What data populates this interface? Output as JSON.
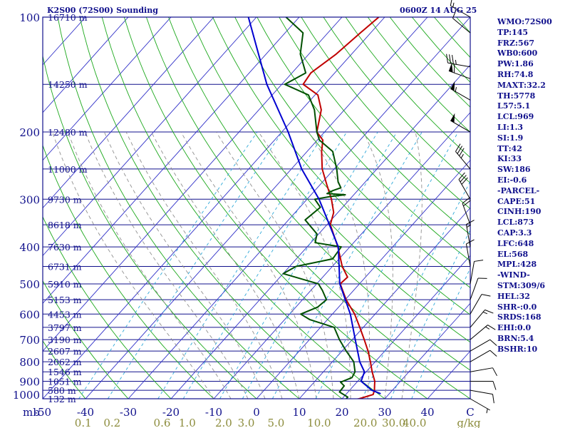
{
  "header": {
    "station": "K2S00 (72S00) Sounding",
    "time": "0600Z 14 AUG 25"
  },
  "axis_labels": {
    "pressure_unit": "mb",
    "mixing_ratio_unit": "g/kg"
  },
  "stats": [
    "WMO:72S00",
    "TP:145",
    "FRZ:567",
    "WB0:600",
    "PW:1.86",
    "RH:74.8",
    "MAXT:32.2",
    "TH:5778",
    "L57:5.1",
    "LCL:969",
    "LI:1.3",
    "SI:1.9",
    "TT:42",
    "KI:33",
    "SW:186",
    "EI:-0.6",
    "-PARCEL-",
    "CAPE:51",
    "CINH:190",
    "LCL:873",
    "CAP:3.3",
    "LFC:648",
    "EL:568",
    "MPL:428",
    "-WIND-",
    "STM:309/6",
    "HEL:32",
    "SHR-:0.0",
    "SRDS:168",
    "EHI:0.0",
    "BRN:5.4",
    "BSHR:10"
  ],
  "colors": {
    "isobar": "#10108c",
    "isotherm": "#3030c8",
    "dry_adiabat": "#1ca81c",
    "moist_adiabat": "#909090",
    "mixing_ratio": "#2ea8d8",
    "temperature": "#c00000",
    "dewpoint": "#005000",
    "parcel": "#0000d0",
    "tick_label": "#10108c",
    "mixing_label": "#8c8c3c"
  },
  "chart_data": {
    "type": "skew-t",
    "title": "K2S00 (72S00) Sounding 0600Z 14 AUG 25",
    "pressure_levels": [
      100,
      200,
      300,
      400,
      500,
      600,
      700,
      800,
      900,
      1000
    ],
    "plim": [
      100,
      1000
    ],
    "tlim": [
      -50,
      50
    ],
    "pressure_scale": "log",
    "temperature_ticks": [
      "-50",
      "-40",
      "-30",
      "-20",
      "-10",
      "0",
      "10",
      "20",
      "30",
      "40",
      "C"
    ],
    "mixing_ratio_ticks": [
      "0.1",
      "0.2",
      "0.6",
      "1.0",
      "2.0",
      "3.0",
      "5.0",
      "10.0",
      "20.0",
      "30.0",
      "40.0"
    ],
    "mixing_ratio_values": [
      0.1,
      0.2,
      0.6,
      1.0,
      2.0,
      3.0,
      5.0,
      10.0,
      20.0,
      30.0,
      40.0
    ],
    "heights": [
      {
        "p": 100,
        "label": "16710 m"
      },
      {
        "p": 150,
        "label": "14250 m"
      },
      {
        "p": 200,
        "label": "12480 m"
      },
      {
        "p": 250,
        "label": "11000 m"
      },
      {
        "p": 300,
        "label": "9730 m"
      },
      {
        "p": 350,
        "label": "8618 m"
      },
      {
        "p": 400,
        "label": "7630 m"
      },
      {
        "p": 450,
        "label": "6731 m"
      },
      {
        "p": 500,
        "label": "5910 m"
      },
      {
        "p": 550,
        "label": "5153 m"
      },
      {
        "p": 600,
        "label": "4453 m"
      },
      {
        "p": 650,
        "label": "3797 m"
      },
      {
        "p": 700,
        "label": "3190 m"
      },
      {
        "p": 750,
        "label": "2607 m"
      },
      {
        "p": 800,
        "label": "2062 m"
      },
      {
        "p": 850,
        "label": "1546 m"
      },
      {
        "p": 900,
        "label": "1051 m"
      },
      {
        "p": 950,
        "label": "580 m"
      },
      {
        "p": 1000,
        "label": "132 m"
      }
    ],
    "series": [
      {
        "name": "temperature",
        "points": [
          [
            1006,
            23.0
          ],
          [
            1000,
            24.0
          ],
          [
            975,
            26.4
          ],
          [
            950,
            25.8
          ],
          [
            925,
            24.9
          ],
          [
            900,
            24.0
          ],
          [
            850,
            21.4
          ],
          [
            800,
            18.9
          ],
          [
            750,
            16.1
          ],
          [
            700,
            12.8
          ],
          [
            650,
            9.2
          ],
          [
            600,
            5.2
          ],
          [
            550,
            0.2
          ],
          [
            500,
            -4.5
          ],
          [
            480,
            -4.2
          ],
          [
            450,
            -7.7
          ],
          [
            400,
            -12.8
          ],
          [
            350,
            -19.2
          ],
          [
            325,
            -21.0
          ],
          [
            300,
            -24.3
          ],
          [
            275,
            -28.4
          ],
          [
            250,
            -32.8
          ],
          [
            225,
            -36.6
          ],
          [
            210,
            -38.7
          ],
          [
            200,
            -41.8
          ],
          [
            175,
            -45.4
          ],
          [
            160,
            -49.3
          ],
          [
            150,
            -55.0
          ],
          [
            140,
            -55.6
          ],
          [
            125,
            -53.6
          ],
          [
            110,
            -52.4
          ],
          [
            100,
            -51.4
          ]
        ]
      },
      {
        "name": "dewpoint",
        "points": [
          [
            1006,
            21.0
          ],
          [
            990,
            21.0
          ],
          [
            960,
            18.0
          ],
          [
            925,
            17.8
          ],
          [
            905,
            16.2
          ],
          [
            880,
            17.9
          ],
          [
            850,
            17.4
          ],
          [
            800,
            15.0
          ],
          [
            750,
            11.0
          ],
          [
            700,
            7.0
          ],
          [
            650,
            3.2
          ],
          [
            620,
            -4.2
          ],
          [
            600,
            -7.4
          ],
          [
            575,
            -4.9
          ],
          [
            550,
            -4.4
          ],
          [
            520,
            -7.3
          ],
          [
            500,
            -9.6
          ],
          [
            470,
            -20.0
          ],
          [
            450,
            -18.5
          ],
          [
            430,
            -11.5
          ],
          [
            400,
            -12.0
          ],
          [
            390,
            -19.0
          ],
          [
            370,
            -20.4
          ],
          [
            340,
            -26.1
          ],
          [
            315,
            -25.2
          ],
          [
            300,
            -28.2
          ],
          [
            295,
            -25.0
          ],
          [
            292,
            -22.0
          ],
          [
            290,
            -26.5
          ],
          [
            285,
            -25.8
          ],
          [
            280,
            -24.5
          ],
          [
            270,
            -26.4
          ],
          [
            250,
            -29.4
          ],
          [
            225,
            -34.0
          ],
          [
            210,
            -39.5
          ],
          [
            200,
            -41.8
          ],
          [
            175,
            -47.0
          ],
          [
            160,
            -51.5
          ],
          [
            150,
            -59.3
          ],
          [
            140,
            -56.8
          ],
          [
            125,
            -62.0
          ],
          [
            110,
            -65.8
          ],
          [
            100,
            -73.1
          ]
        ]
      },
      {
        "name": "parcel",
        "points": [
          [
            970,
            28.0
          ],
          [
            950,
            25.2
          ],
          [
            900,
            20.8
          ],
          [
            850,
            19.6
          ],
          [
            800,
            16.4
          ],
          [
            700,
            10.7
          ],
          [
            600,
            4.2
          ],
          [
            500,
            -4.6
          ],
          [
            400,
            -12.7
          ],
          [
            350,
            -19.4
          ],
          [
            300,
            -27.2
          ],
          [
            250,
            -37.6
          ],
          [
            200,
            -48.5
          ],
          [
            150,
            -63.5
          ],
          [
            100,
            -81.9
          ]
        ]
      }
    ],
    "wind_barbs": [
      {
        "p": 100,
        "dir": 300,
        "kt": 15
      },
      {
        "p": 110,
        "dir": 310,
        "kt": 10
      },
      {
        "p": 135,
        "dir": 280,
        "kt": 35
      },
      {
        "p": 145,
        "dir": 290,
        "kt": 60
      },
      {
        "p": 165,
        "dir": 300,
        "kt": 55
      },
      {
        "p": 200,
        "dir": 300,
        "kt": 50
      },
      {
        "p": 250,
        "dir": 320,
        "kt": 35
      },
      {
        "p": 300,
        "dir": 330,
        "kt": 30
      },
      {
        "p": 350,
        "dir": 340,
        "kt": 20
      },
      {
        "p": 400,
        "dir": 350,
        "kt": 15
      },
      {
        "p": 450,
        "dir": 350,
        "kt": 10
      },
      {
        "p": 500,
        "dir": 10,
        "kt": 10
      },
      {
        "p": 550,
        "dir": 20,
        "kt": 10
      },
      {
        "p": 600,
        "dir": 30,
        "kt": 10
      },
      {
        "p": 650,
        "dir": 40,
        "kt": 15
      },
      {
        "p": 700,
        "dir": 50,
        "kt": 15
      },
      {
        "p": 750,
        "dir": 60,
        "kt": 10
      },
      {
        "p": 800,
        "dir": 60,
        "kt": 10
      },
      {
        "p": 850,
        "dir": 80,
        "kt": 10
      },
      {
        "p": 900,
        "dir": 90,
        "kt": 10
      },
      {
        "p": 950,
        "dir": 100,
        "kt": 10
      },
      {
        "p": 1000,
        "dir": 120,
        "kt": 5
      }
    ]
  }
}
